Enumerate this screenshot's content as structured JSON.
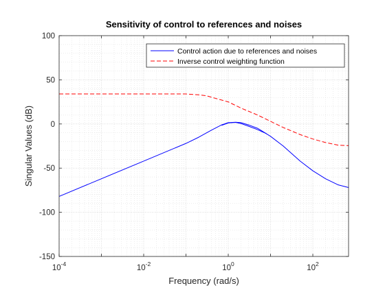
{
  "chart_data": {
    "type": "line",
    "title": "Sensitivity of control to references and noises",
    "xlabel": "Frequency (rad/s)",
    "ylabel": "Singular Values (dB)",
    "xscale": "log",
    "xlim": [
      0.0001,
      700
    ],
    "ylim": [
      -150,
      100
    ],
    "grid": "on (major and minor)",
    "legend_placement": "top-right",
    "x_ticks": [
      {
        "value": 0.0001,
        "base": "10",
        "exp": "-4"
      },
      {
        "value": 0.01,
        "base": "10",
        "exp": "-2"
      },
      {
        "value": 1,
        "base": "10",
        "exp": "0"
      },
      {
        "value": 100,
        "base": "10",
        "exp": "2"
      }
    ],
    "y_ticks": [
      100,
      50,
      0,
      -50,
      -100,
      -150
    ],
    "series": [
      {
        "name": "Control action due to references and noises",
        "color": "#0000ff",
        "style": "solid",
        "points": [
          [
            0.0001,
            -82
          ],
          [
            0.001,
            -62
          ],
          [
            0.01,
            -42
          ],
          [
            0.1,
            -22
          ],
          [
            0.2,
            -15
          ],
          [
            0.4,
            -7
          ],
          [
            0.7,
            -1
          ],
          [
            1.0,
            1.5
          ],
          [
            1.5,
            2
          ],
          [
            2.0,
            1.5
          ],
          [
            3.0,
            -1
          ],
          [
            5.0,
            -5
          ],
          [
            10,
            -14
          ],
          [
            20,
            -25
          ],
          [
            50,
            -42
          ],
          [
            100,
            -53
          ],
          [
            200,
            -62
          ],
          [
            400,
            -69
          ],
          [
            700,
            -72
          ]
        ]
      },
      {
        "name": "",
        "color": "#0000ff",
        "style": "solid",
        "points": [
          [
            0.7,
            -1.5
          ],
          [
            1.0,
            1.2
          ],
          [
            1.5,
            1.8
          ],
          [
            2.0,
            0.5
          ],
          [
            3.0,
            -2.5
          ],
          [
            5.0,
            -6.5
          ],
          [
            8.0,
            -11
          ]
        ]
      },
      {
        "name": "Inverse control weighting function",
        "color": "#ff0000",
        "style": "dashed",
        "points": [
          [
            0.0001,
            34
          ],
          [
            0.01,
            34
          ],
          [
            0.1,
            34
          ],
          [
            0.2,
            33
          ],
          [
            0.3,
            32
          ],
          [
            0.5,
            29
          ],
          [
            1,
            25
          ],
          [
            2,
            18
          ],
          [
            5,
            10
          ],
          [
            10,
            3
          ],
          [
            20,
            -4
          ],
          [
            50,
            -12
          ],
          [
            100,
            -17
          ],
          [
            200,
            -21
          ],
          [
            400,
            -24
          ],
          [
            700,
            -24.5
          ]
        ]
      }
    ]
  }
}
